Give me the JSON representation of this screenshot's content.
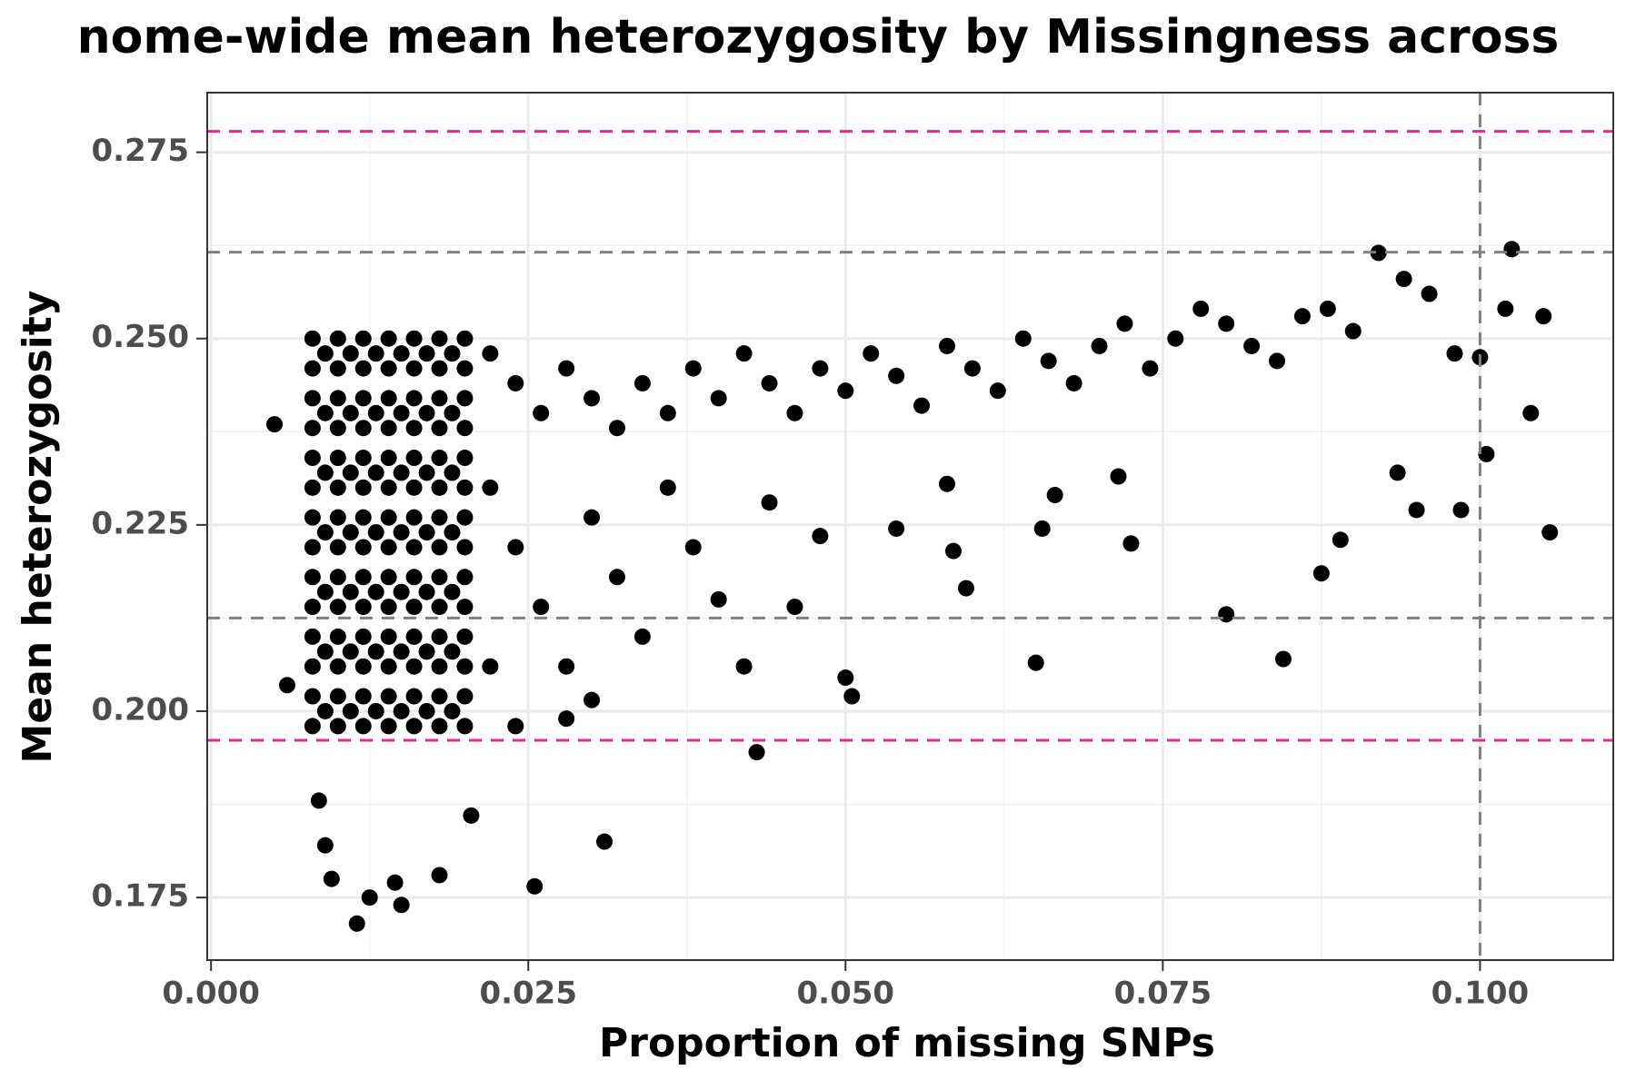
{
  "chart_data": {
    "type": "scatter",
    "title": "nome-wide mean heterozygosity by Missingness across",
    "x_label": "Proportion of missing SNPs",
    "y_label": "Mean heterozygosity",
    "xlim": [
      -0.0003,
      0.1105
    ],
    "ylim": [
      0.1666,
      0.283
    ],
    "xticks": [
      {
        "value": 0,
        "label": "0.000"
      },
      0.025,
      {
        "value": 0.05,
        "label": "0.050"
      },
      0.075,
      {
        "value": 0.1,
        "label": "0.100"
      }
    ],
    "yticks": [
      0.175,
      {
        "value": 0.2,
        "label": "0.200"
      },
      0.225,
      {
        "value": 0.25,
        "label": "0.250"
      },
      0.275
    ],
    "x_minor_ticks": [
      0.0125,
      0.0375,
      0.0625,
      0.0875
    ],
    "y_minor_ticks": [
      0.1875,
      0.2125,
      0.2375,
      0.2625
    ],
    "grid": true,
    "color": "#000000",
    "hlines": [
      {
        "value": 0.2778,
        "color": "#e7298a"
      },
      {
        "value": 0.1961,
        "color": "#e7298a"
      },
      {
        "value": 0.2616,
        "color": "#808080"
      },
      {
        "value": 0.2125,
        "color": "#808080"
      }
    ],
    "vlines": [
      {
        "value": 0.1,
        "color": "#808080"
      }
    ],
    "x": [
      0.008,
      0.01,
      0.012,
      0.014,
      0.016,
      0.018,
      0.02,
      0.008,
      0.01,
      0.012,
      0.014,
      0.016,
      0.018,
      0.02,
      0.008,
      0.01,
      0.012,
      0.014,
      0.016,
      0.018,
      0.02,
      0.008,
      0.01,
      0.012,
      0.014,
      0.016,
      0.018,
      0.02,
      0.008,
      0.01,
      0.012,
      0.014,
      0.016,
      0.018,
      0.02,
      0.008,
      0.01,
      0.012,
      0.014,
      0.016,
      0.018,
      0.02,
      0.008,
      0.01,
      0.012,
      0.014,
      0.016,
      0.018,
      0.02,
      0.008,
      0.01,
      0.012,
      0.014,
      0.016,
      0.018,
      0.02,
      0.008,
      0.01,
      0.012,
      0.014,
      0.016,
      0.018,
      0.02,
      0.008,
      0.01,
      0.012,
      0.014,
      0.016,
      0.018,
      0.02,
      0.008,
      0.01,
      0.012,
      0.014,
      0.016,
      0.018,
      0.02,
      0.008,
      0.01,
      0.012,
      0.014,
      0.016,
      0.018,
      0.02,
      0.008,
      0.01,
      0.012,
      0.014,
      0.016,
      0.018,
      0.02,
      0.008,
      0.01,
      0.012,
      0.014,
      0.016,
      0.018,
      0.02,
      0.009,
      0.011,
      0.013,
      0.015,
      0.017,
      0.019,
      0.009,
      0.011,
      0.013,
      0.015,
      0.017,
      0.019,
      0.009,
      0.011,
      0.013,
      0.015,
      0.017,
      0.019,
      0.009,
      0.011,
      0.013,
      0.015,
      0.017,
      0.019,
      0.009,
      0.011,
      0.013,
      0.015,
      0.017,
      0.019,
      0.009,
      0.011,
      0.013,
      0.015,
      0.017,
      0.019,
      0.009,
      0.011,
      0.013,
      0.015,
      0.017,
      0.019,
      0.022,
      0.024,
      0.026,
      0.028,
      0.03,
      0.032,
      0.034,
      0.036,
      0.038,
      0.04,
      0.042,
      0.044,
      0.046,
      0.048,
      0.05,
      0.052,
      0.054,
      0.056,
      0.058,
      0.06,
      0.062,
      0.064,
      0.066,
      0.068,
      0.07,
      0.072,
      0.074,
      0.076,
      0.078,
      0.08,
      0.082,
      0.084,
      0.086,
      0.088,
      0.09,
      0.092,
      0.094,
      0.096,
      0.098,
      0.1,
      0.1025,
      0.102,
      0.105,
      0.022,
      0.024,
      0.026,
      0.028,
      0.03,
      0.032,
      0.034,
      0.036,
      0.038,
      0.04,
      0.042,
      0.044,
      0.046,
      0.048,
      0.05,
      0.0505,
      0.022,
      0.024,
      0.028,
      0.03,
      0.005,
      0.006,
      0.0085,
      0.009,
      0.0095,
      0.0115,
      0.0125,
      0.0145,
      0.015,
      0.018,
      0.0205,
      0.0255,
      0.031,
      0.043,
      0.065,
      0.08,
      0.0845,
      0.0875,
      0.089,
      0.1055,
      0.0985,
      0.095,
      0.0935,
      0.1005,
      0.104,
      0.0595,
      0.0585,
      0.0725,
      0.0715,
      0.058,
      0.054,
      0.0665,
      0.0655
    ],
    "values": [
      0.25,
      0.25,
      0.25,
      0.25,
      0.25,
      0.25,
      0.25,
      0.246,
      0.246,
      0.246,
      0.246,
      0.246,
      0.246,
      0.246,
      0.242,
      0.242,
      0.242,
      0.242,
      0.242,
      0.242,
      0.242,
      0.238,
      0.238,
      0.238,
      0.238,
      0.238,
      0.238,
      0.238,
      0.234,
      0.234,
      0.234,
      0.234,
      0.234,
      0.234,
      0.234,
      0.23,
      0.23,
      0.23,
      0.23,
      0.23,
      0.23,
      0.23,
      0.226,
      0.226,
      0.226,
      0.226,
      0.226,
      0.226,
      0.226,
      0.222,
      0.222,
      0.222,
      0.222,
      0.222,
      0.222,
      0.222,
      0.218,
      0.218,
      0.218,
      0.218,
      0.218,
      0.218,
      0.218,
      0.214,
      0.214,
      0.214,
      0.214,
      0.214,
      0.214,
      0.214,
      0.21,
      0.21,
      0.21,
      0.21,
      0.21,
      0.21,
      0.21,
      0.206,
      0.206,
      0.206,
      0.206,
      0.206,
      0.206,
      0.206,
      0.202,
      0.202,
      0.202,
      0.202,
      0.202,
      0.202,
      0.202,
      0.198,
      0.198,
      0.198,
      0.198,
      0.198,
      0.198,
      0.198,
      0.248,
      0.248,
      0.248,
      0.248,
      0.248,
      0.248,
      0.24,
      0.24,
      0.24,
      0.24,
      0.24,
      0.24,
      0.232,
      0.232,
      0.232,
      0.232,
      0.232,
      0.232,
      0.224,
      0.224,
      0.224,
      0.224,
      0.224,
      0.224,
      0.216,
      0.216,
      0.216,
      0.216,
      0.216,
      0.216,
      0.208,
      0.208,
      0.208,
      0.208,
      0.208,
      0.208,
      0.2,
      0.2,
      0.2,
      0.2,
      0.2,
      0.2,
      0.248,
      0.244,
      0.24,
      0.246,
      0.242,
      0.238,
      0.244,
      0.24,
      0.246,
      0.242,
      0.248,
      0.244,
      0.24,
      0.246,
      0.243,
      0.248,
      0.245,
      0.241,
      0.249,
      0.246,
      0.243,
      0.25,
      0.247,
      0.244,
      0.249,
      0.252,
      0.246,
      0.25,
      0.254,
      0.252,
      0.249,
      0.247,
      0.253,
      0.254,
      0.251,
      0.2615,
      0.258,
      0.256,
      0.248,
      0.2475,
      0.262,
      0.254,
      0.253,
      0.23,
      0.222,
      0.214,
      0.206,
      0.226,
      0.218,
      0.21,
      0.23,
      0.222,
      0.215,
      0.206,
      0.228,
      0.214,
      0.2235,
      0.2045,
      0.202,
      0.206,
      0.198,
      0.199,
      0.2015,
      0.2385,
      0.2035,
      0.188,
      0.182,
      0.1775,
      0.1715,
      0.175,
      0.177,
      0.174,
      0.178,
      0.186,
      0.1765,
      0.1825,
      0.1945,
      0.2065,
      0.213,
      0.207,
      0.2185,
      0.223,
      0.224,
      0.227,
      0.227,
      0.232,
      0.2345,
      0.24,
      0.2165,
      0.2215,
      0.2225,
      0.2315,
      0.2305,
      0.2245,
      0.229,
      0.2245
    ]
  }
}
